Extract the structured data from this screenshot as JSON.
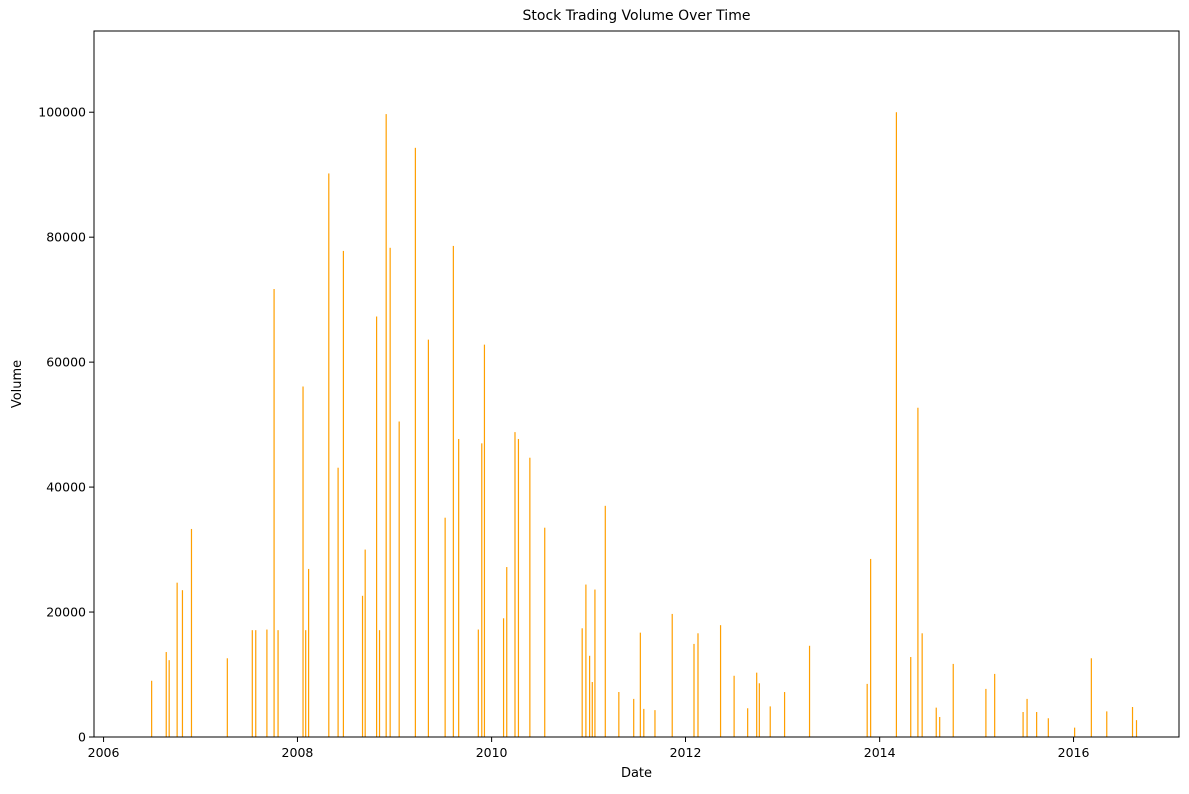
{
  "chart_data": {
    "type": "bar",
    "title": "Stock Trading Volume Over Time",
    "xlabel": "Date",
    "ylabel": "Volume",
    "x_axis": "date",
    "xlim": [
      "2005-11-26",
      "2017-02-01"
    ],
    "ylim": [
      0,
      113000
    ],
    "xticks": [
      "2006",
      "2008",
      "2010",
      "2012",
      "2014",
      "2016"
    ],
    "yticks": [
      "0",
      "20000",
      "40000",
      "60000",
      "80000",
      "100000"
    ],
    "grid": false,
    "legend": "none",
    "bar_color": "#ff9f00",
    "series": [
      {
        "dates": [
          "2006-07-01",
          "2006-08-25",
          "2006-09-05",
          "2006-10-05",
          "2006-10-25",
          "2006-11-28",
          "2007-04-12",
          "2007-07-15",
          "2007-07-28",
          "2007-09-08",
          "2007-10-05",
          "2007-10-20",
          "2008-01-22",
          "2008-02-01",
          "2008-02-12",
          "2008-04-28",
          "2008-06-02",
          "2008-06-22",
          "2008-09-02",
          "2008-09-12",
          "2008-10-25",
          "2008-11-05",
          "2008-11-30",
          "2008-12-15",
          "2009-01-18",
          "2009-03-20",
          "2009-05-08",
          "2009-07-10",
          "2009-08-10",
          "2009-08-30",
          "2009-11-12",
          "2009-11-25",
          "2009-12-05",
          "2010-02-15",
          "2010-02-27",
          "2010-03-30",
          "2010-04-12",
          "2010-05-25",
          "2010-07-20",
          "2010-12-08",
          "2010-12-22",
          "2011-01-05",
          "2011-01-15",
          "2011-01-25",
          "2011-03-05",
          "2011-04-25",
          "2011-06-20",
          "2011-07-15",
          "2011-07-28",
          "2011-09-08",
          "2011-11-12",
          "2012-02-02",
          "2012-02-17",
          "2012-05-12",
          "2012-07-02",
          "2012-08-22",
          "2012-09-25",
          "2012-10-05",
          "2012-11-15",
          "2013-01-08",
          "2013-04-12",
          "2013-11-15",
          "2013-11-28",
          "2014-03-05",
          "2014-04-28",
          "2014-05-25",
          "2014-06-10",
          "2014-08-02",
          "2014-08-15",
          "2014-10-05",
          "2015-02-05",
          "2015-03-10",
          "2015-06-25",
          "2015-07-10",
          "2015-08-15",
          "2015-09-28",
          "2016-01-05",
          "2016-03-08",
          "2016-05-05",
          "2016-08-10",
          "2016-08-25"
        ],
        "values": [
          9000,
          13600,
          12300,
          24700,
          23500,
          33300,
          12600,
          17100,
          17100,
          17200,
          71700,
          17100,
          56100,
          17100,
          26900,
          90200,
          43100,
          77800,
          22600,
          30000,
          67300,
          17100,
          99700,
          78300,
          50500,
          94300,
          63600,
          35100,
          78600,
          47700,
          17200,
          47000,
          62800,
          19000,
          27200,
          48800,
          47700,
          44700,
          33500,
          17400,
          24400,
          13000,
          8800,
          23600,
          37000,
          7200,
          6100,
          16700,
          4500,
          4300,
          19700,
          14900,
          16600,
          17900,
          9800,
          4600,
          10300,
          8600,
          4900,
          7200,
          14600,
          8500,
          28500,
          100000,
          12800,
          52700,
          16600,
          4700,
          3200,
          11700,
          7700,
          10100,
          4000,
          6100,
          4000,
          3000,
          1500,
          12600,
          4100,
          4800,
          2700
        ]
      }
    ]
  }
}
